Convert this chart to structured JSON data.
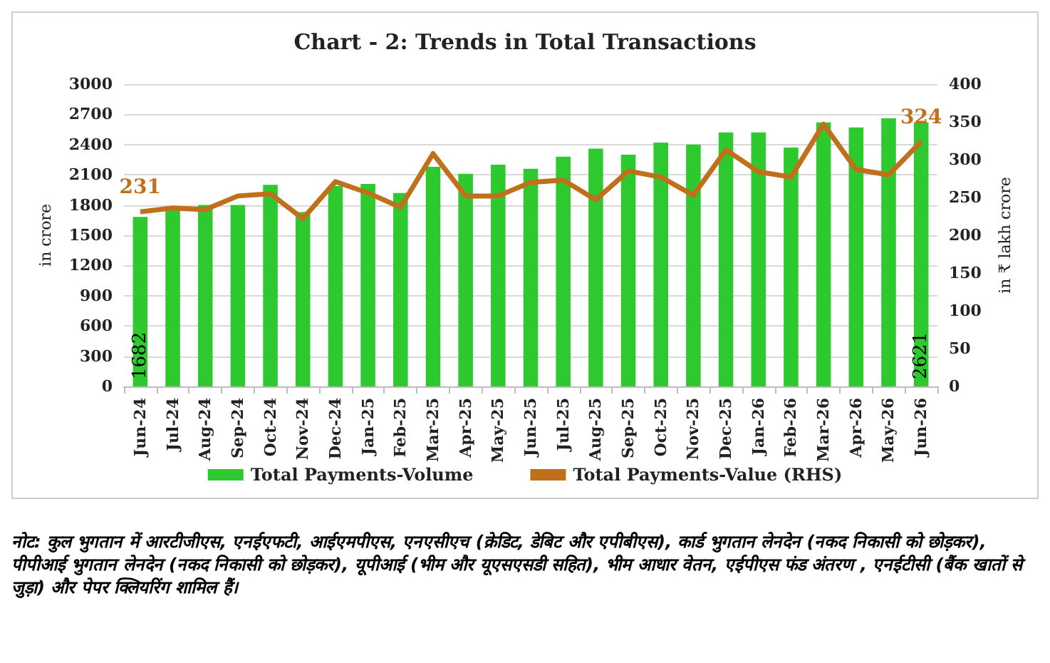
{
  "chart_data": {
    "type": "bar",
    "title": "Chart - 2: Trends in Total Transactions",
    "categories": [
      "Jun-24",
      "Jul-24",
      "Aug-24",
      "Sep-24",
      "Oct-24",
      "Nov-24",
      "Dec-24",
      "Jan-25",
      "Feb-25",
      "Mar-25",
      "Apr-25",
      "May-25",
      "Jun-25",
      "Jul-25",
      "Aug-25",
      "Sep-25",
      "Oct-25",
      "Nov-25",
      "Dec-25",
      "Jan-26",
      "Feb-26",
      "Mar-26",
      "Apr-26",
      "May-26",
      "Jun-26"
    ],
    "series": [
      {
        "name": "Total Payments-Volume",
        "color": "#2ec92e",
        "values": [
          1682,
          1760,
          1800,
          1800,
          2000,
          1730,
          1990,
          2010,
          1920,
          2180,
          2110,
          2200,
          2160,
          2280,
          2360,
          2300,
          2420,
          2400,
          2520,
          2520,
          2370,
          2620,
          2570,
          2660,
          2621
        ],
        "value_labels": [
          "1682",
          null,
          null,
          null,
          null,
          null,
          null,
          null,
          null,
          null,
          null,
          null,
          null,
          null,
          null,
          null,
          null,
          null,
          null,
          null,
          null,
          null,
          null,
          null,
          "2621"
        ]
      },
      {
        "name": "Total Payments-Value (RHS)",
        "type": "line",
        "axis": "y2",
        "color": "#c0701a",
        "values": [
          231,
          236,
          234,
          252,
          255,
          222,
          271,
          256,
          237,
          308,
          252,
          252,
          270,
          273,
          247,
          285,
          277,
          253,
          313,
          284,
          277,
          347,
          287,
          280,
          324
        ],
        "value_labels": [
          "231",
          null,
          null,
          null,
          null,
          null,
          null,
          null,
          null,
          null,
          null,
          null,
          null,
          null,
          null,
          null,
          null,
          null,
          null,
          null,
          null,
          null,
          null,
          null,
          "324"
        ]
      }
    ],
    "ylabel": "in crore",
    "y2label": "in ₹ lakh crore",
    "ylim": [
      0,
      3000
    ],
    "yticks": [
      0,
      300,
      600,
      900,
      1200,
      1500,
      1800,
      2100,
      2400,
      2700,
      3000
    ],
    "y2lim": [
      0,
      400
    ],
    "y2ticks": [
      0,
      50,
      100,
      150,
      200,
      250,
      300,
      350,
      400
    ],
    "grid": "y",
    "legend": "bottom",
    "marker": "none",
    "annotations": [
      "नोट: कुल भुगतान में आरटीजीएस, एनईएफटी, आईएमपीएस, एनएसीएच (क्रेडिट, डेबिट और एपीबीएस), कार्ड भुगतान लेनदेन (नकद निकासी को छोड़कर), पीपीआई भुगतान लेनदेन (नकद निकासी को छोड़कर), यूपीआई (भीम और यूएसएसडी सहित), भीम आधार वेतन, एईपीएस फंड अंतरण , एनईटीसी (बैंक खातों से जुड़ा) और पेपर क्लियरिंग शामिल हैं।"
    ]
  }
}
